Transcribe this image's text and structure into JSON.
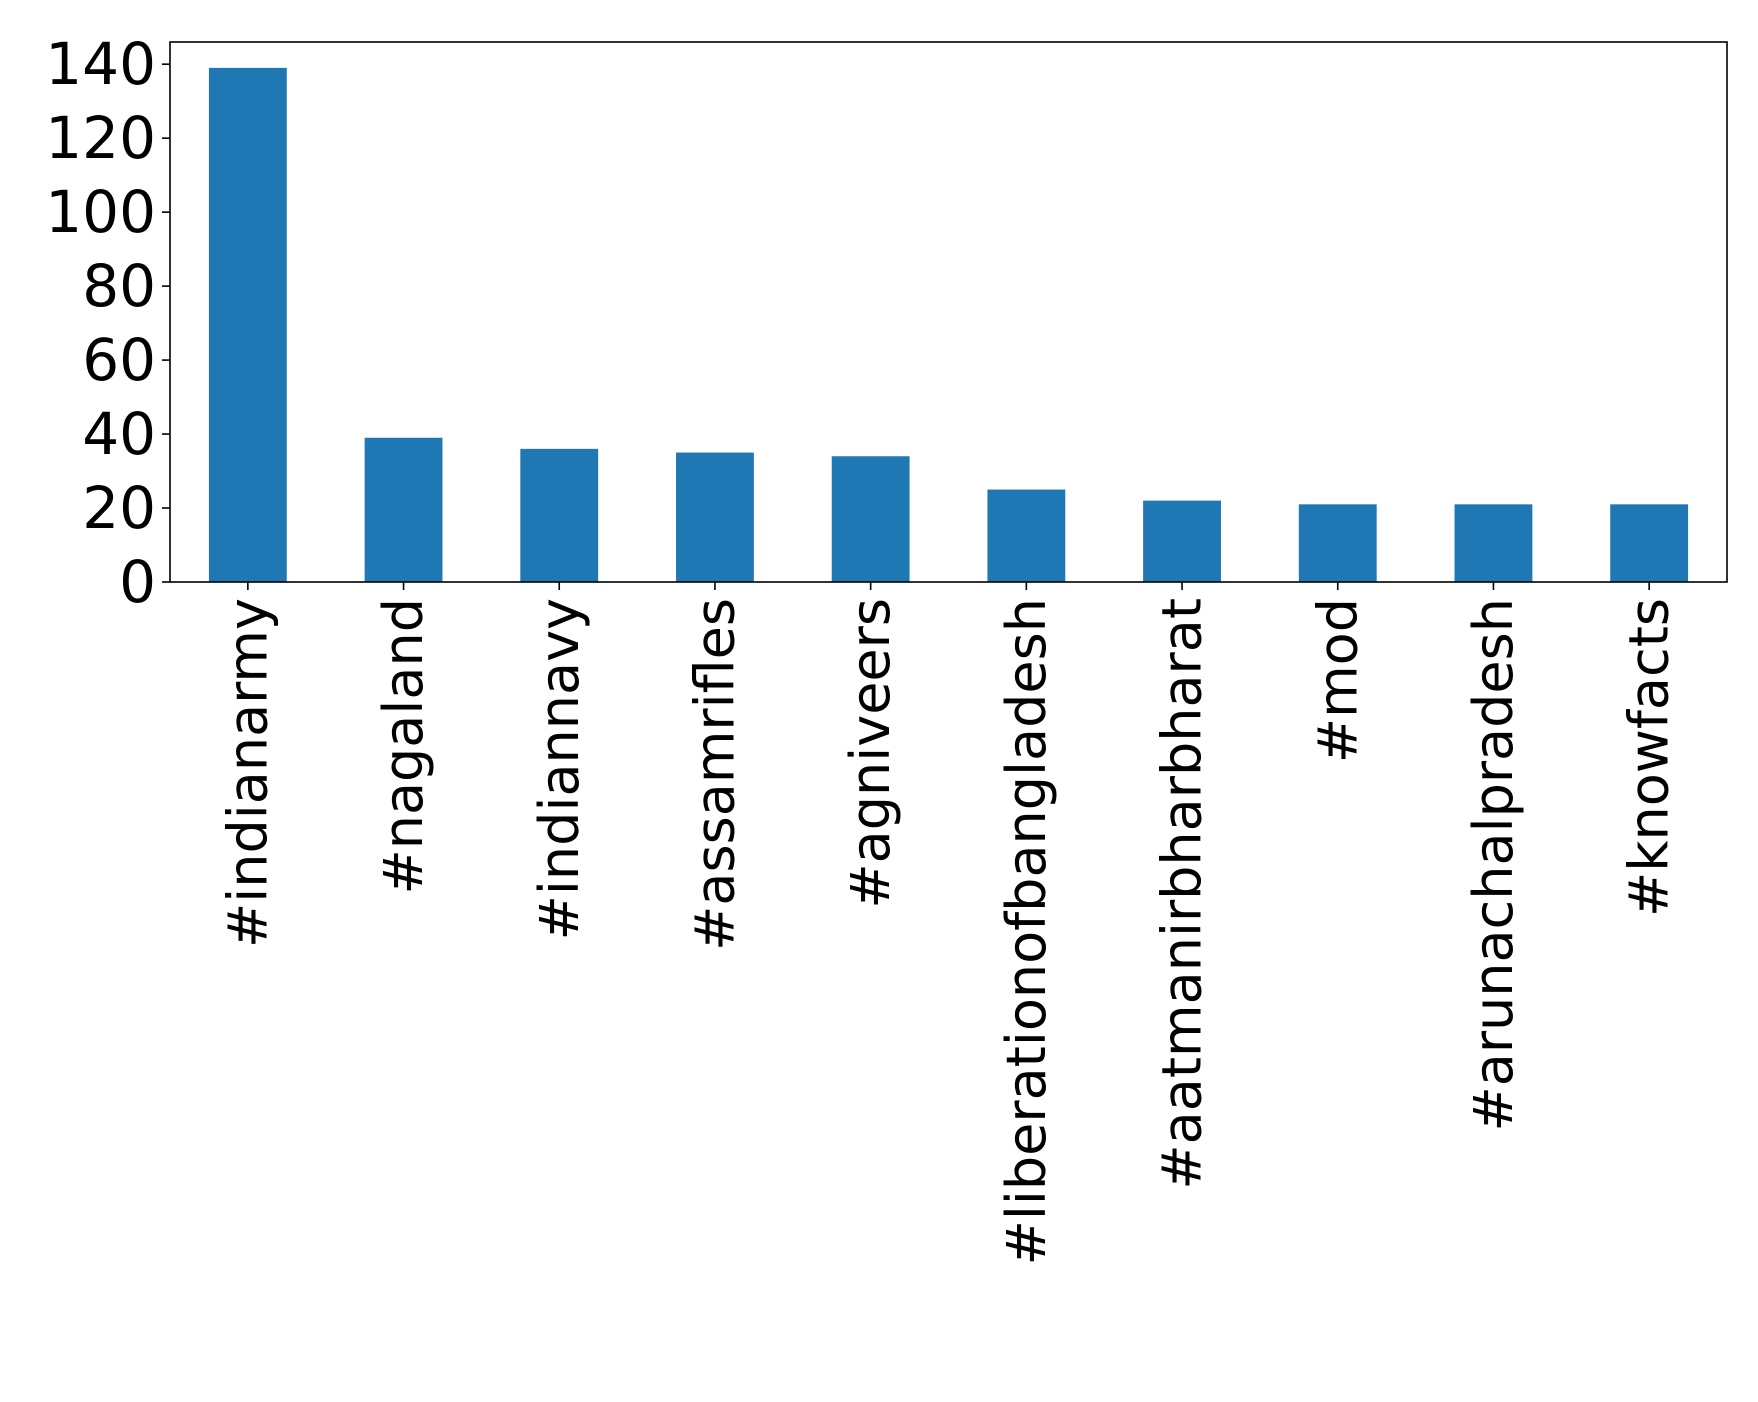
{
  "chart_data": {
    "type": "bar",
    "title": "",
    "xlabel": "",
    "ylabel": "",
    "categories": [
      "#indianarmy",
      "#nagaland",
      "#indiannavy",
      "#assamrifles",
      "#agniveers",
      "#liberationofbangladesh",
      "#aatmanirbharbharat",
      "#mod",
      "#arunachalpradesh",
      "#knowfacts"
    ],
    "values": [
      139,
      39,
      36,
      35,
      34,
      25,
      22,
      21,
      21,
      21
    ],
    "ylim": [
      0,
      146
    ],
    "yticks": [
      0,
      20,
      40,
      60,
      80,
      100,
      120,
      140
    ],
    "grid": false,
    "bar_color": "#1f77b4"
  }
}
